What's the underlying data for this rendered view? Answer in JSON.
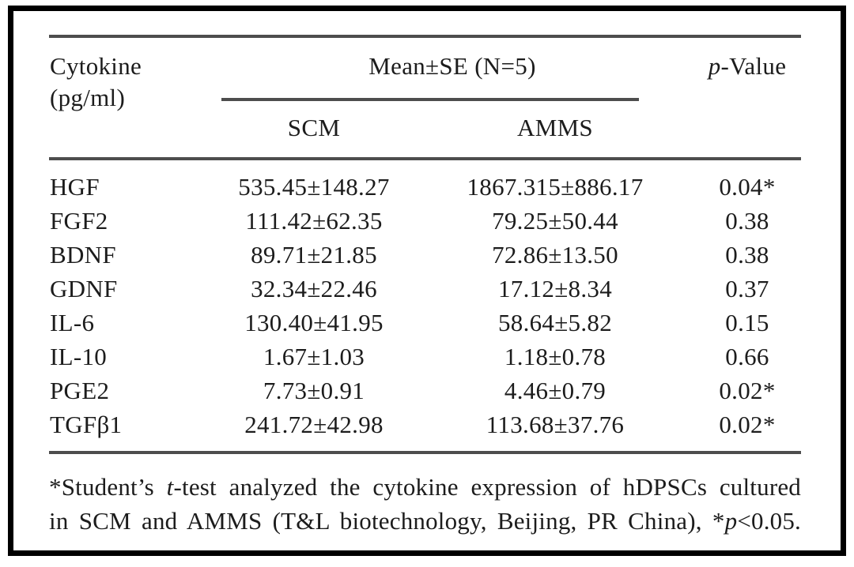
{
  "table": {
    "header": {
      "cytokine_line1": "Cytokine",
      "cytokine_line2": "(pg/ml)",
      "group": "Mean±SE (N=5)",
      "sub": [
        "SCM",
        "AMMS"
      ],
      "p_value": [
        {
          "text": "p",
          "italic": true
        },
        {
          "text": "-Value",
          "italic": false
        }
      ]
    },
    "rows": [
      {
        "cytokine": "HGF",
        "scm": "535.45±148.27",
        "amms": "1867.315±886.17",
        "p": "0.04*"
      },
      {
        "cytokine": "FGF2",
        "scm": "111.42±62.35",
        "amms": "79.25±50.44",
        "p": "0.38"
      },
      {
        "cytokine": "BDNF",
        "scm": "89.71±21.85",
        "amms": "72.86±13.50",
        "p": "0.38"
      },
      {
        "cytokine": "GDNF",
        "scm": "32.34±22.46",
        "amms": "17.12±8.34",
        "p": "0.37"
      },
      {
        "cytokine": "IL-6",
        "scm": "130.40±41.95",
        "amms": "58.64±5.82",
        "p": "0.15"
      },
      {
        "cytokine": "IL-10",
        "scm": "1.67±1.03",
        "amms": "1.18±0.78",
        "p": "0.66"
      },
      {
        "cytokine": "PGE2",
        "scm": "7.73±0.91",
        "amms": "4.46±0.79",
        "p": "0.02*"
      },
      {
        "cytokine": "TGFβ1",
        "scm": "241.72±42.98",
        "amms": "113.68±37.76",
        "p": "0.02*"
      }
    ]
  },
  "footnote": {
    "lines": [
      [
        {
          "text": "*Student’s ",
          "italic": false
        },
        {
          "text": "t",
          "italic": true
        },
        {
          "text": "-test analyzed the cytokine expression of hDPSCs cultured",
          "italic": false
        }
      ],
      [
        {
          "text": "in SCM and AMMS (T&L biotechnology, Beijing, PR China), *",
          "italic": false
        },
        {
          "text": "p",
          "italic": true
        },
        {
          "text": "<0.05.",
          "italic": false
        }
      ]
    ]
  },
  "colors": {
    "text": "#1c1c1c",
    "rule": "#4d4d4d",
    "frame": "#000000",
    "background": "#ffffff"
  }
}
